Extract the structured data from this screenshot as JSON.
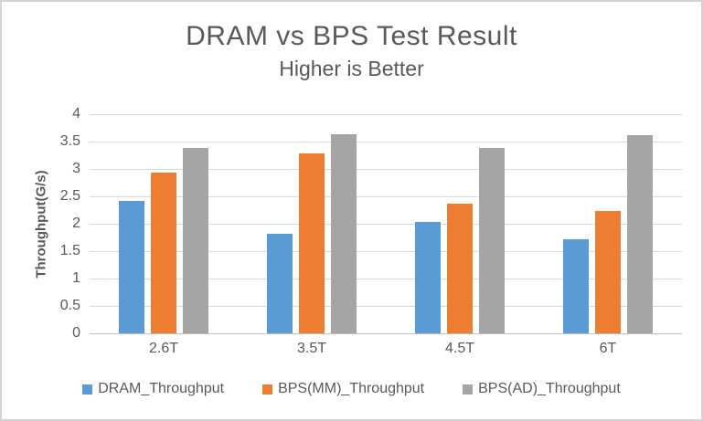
{
  "chart_data": {
    "type": "bar",
    "title": "DRAM vs BPS Test Result",
    "subtitle": "Higher is Better",
    "xlabel": "",
    "ylabel": "Throughput(G/s)",
    "categories": [
      "2.6T",
      "3.5T",
      "4.5T",
      "6T"
    ],
    "series": [
      {
        "name": "DRAM_Throughput",
        "color": "#5B9BD5",
        "values": [
          2.42,
          1.81,
          2.04,
          1.71
        ]
      },
      {
        "name": "BPS(MM)_Throughput",
        "color": "#ED7D31",
        "values": [
          2.94,
          3.28,
          2.37,
          2.24
        ]
      },
      {
        "name": "BPS(AD)_Throughput",
        "color": "#A5A5A5",
        "values": [
          3.39,
          3.64,
          3.38,
          3.62
        ]
      }
    ],
    "ylim": [
      0,
      4
    ],
    "ytick_step": 0.5,
    "yticks": [
      "0",
      "0.5",
      "1",
      "1.5",
      "2",
      "2.5",
      "3",
      "3.5",
      "4"
    ],
    "grid": true,
    "legend_position": "bottom"
  },
  "colors": {
    "text": "#595959",
    "gridline": "#D9D9D9",
    "axis_line": "#BFBFBF",
    "frame_border": "#D3D3D3",
    "background": "#FFFFFF"
  }
}
